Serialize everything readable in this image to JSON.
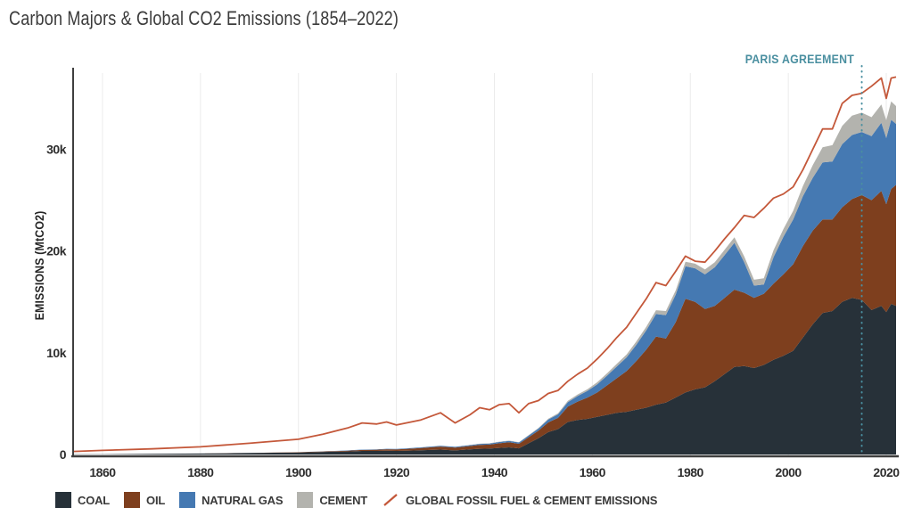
{
  "title": "Carbon Majors & Global CO2 Emissions (1854–2022)",
  "axes": {
    "y_label": "EMISSIONS (MtCO2)",
    "y_tick_labels": [
      "0",
      "10k",
      "20k",
      "30k"
    ],
    "x_tick_labels": [
      "1860",
      "1880",
      "1900",
      "1920",
      "1940",
      "1960",
      "1980",
      "2000",
      "2020"
    ]
  },
  "annotations": {
    "paris_label": "PARIS AGREEMENT",
    "paris_year": 2015,
    "paris_color": "#4a8fa0"
  },
  "colors": {
    "coal": "#273139",
    "oil": "#7e3f1e",
    "natural_gas": "#4579b2",
    "cement": "#b3b3ae",
    "global_line": "#c4583a",
    "axis": "#3f3f3f",
    "gridline": "#ebebeb",
    "title_text": "#3b3b3b"
  },
  "legend": [
    {
      "label": "COAL",
      "color": "#273139",
      "glyph": "swatch"
    },
    {
      "label": "OIL",
      "color": "#7e3f1e",
      "glyph": "swatch"
    },
    {
      "label": "NATURAL GAS",
      "color": "#4579b2",
      "glyph": "swatch"
    },
    {
      "label": "CEMENT",
      "color": "#b3b3ae",
      "glyph": "swatch"
    },
    {
      "label": "GLOBAL FOSSIL FUEL & CEMENT EMISSIONS",
      "color": "#c4583a",
      "glyph": "line"
    }
  ],
  "chart_data": {
    "type": "area",
    "title": "Carbon Majors & Global CO2 Emissions (1854–2022)",
    "xlabel": "",
    "ylabel": "EMISSIONS (MtCO2)",
    "x_range": [
      1854,
      2022
    ],
    "ylim": [
      0,
      38000
    ],
    "x_ticks": [
      1860,
      1880,
      1900,
      1920,
      1940,
      1960,
      1980,
      2000,
      2020
    ],
    "y_ticks": [
      {
        "value": 0,
        "label": "0"
      },
      {
        "value": 10000,
        "label": "10k"
      },
      {
        "value": 20000,
        "label": "20k"
      },
      {
        "value": 30000,
        "label": "30k"
      }
    ],
    "grid": "vertical-only",
    "legend_position": "bottom",
    "stacked": true,
    "years": [
      1854,
      1860,
      1870,
      1880,
      1890,
      1900,
      1905,
      1910,
      1913,
      1916,
      1918,
      1920,
      1922,
      1925,
      1929,
      1932,
      1935,
      1937,
      1939,
      1941,
      1943,
      1945,
      1947,
      1949,
      1951,
      1953,
      1955,
      1957,
      1959,
      1961,
      1963,
      1965,
      1967,
      1969,
      1971,
      1973,
      1975,
      1977,
      1979,
      1981,
      1983,
      1985,
      1987,
      1989,
      1991,
      1993,
      1995,
      1997,
      1999,
      2001,
      2003,
      2005,
      2007,
      2009,
      2011,
      2013,
      2015,
      2017,
      2019,
      2020,
      2021,
      2022
    ],
    "series": [
      {
        "name": "COAL",
        "color": "#273139",
        "values": [
          20,
          30,
          60,
          100,
          150,
          200,
          250,
          300,
          350,
          350,
          380,
          350,
          380,
          420,
          480,
          400,
          500,
          560,
          580,
          650,
          700,
          600,
          1100,
          1600,
          2200,
          2500,
          3200,
          3400,
          3500,
          3700,
          3900,
          4100,
          4200,
          4400,
          4600,
          4900,
          5100,
          5600,
          6100,
          6400,
          6600,
          7200,
          7900,
          8600,
          8700,
          8500,
          8800,
          9300,
          9700,
          10200,
          11500,
          12800,
          13900,
          14100,
          15000,
          15400,
          15200,
          14200,
          14600,
          14000,
          14800,
          14600
        ]
      },
      {
        "name": "OIL",
        "color": "#7e3f1e",
        "values": [
          0,
          0,
          0,
          0,
          10,
          30,
          50,
          80,
          100,
          120,
          140,
          150,
          170,
          220,
          300,
          280,
          330,
          380,
          390,
          450,
          500,
          450,
          600,
          750,
          950,
          1100,
          1500,
          1800,
          2100,
          2400,
          2900,
          3400,
          4000,
          4800,
          5700,
          6700,
          6300,
          7400,
          9200,
          8600,
          7700,
          7400,
          7500,
          7600,
          7200,
          6900,
          7000,
          7500,
          8000,
          8500,
          9000,
          9200,
          9200,
          9000,
          9300,
          9700,
          10300,
          10800,
          11300,
          10600,
          11300,
          11900
        ]
      },
      {
        "name": "NATURAL GAS",
        "color": "#4579b2",
        "values": [
          0,
          0,
          0,
          0,
          0,
          0,
          10,
          20,
          30,
          35,
          40,
          40,
          50,
          60,
          80,
          75,
          90,
          100,
          110,
          130,
          140,
          130,
          160,
          200,
          280,
          350,
          450,
          550,
          650,
          800,
          950,
          1150,
          1350,
          1600,
          1900,
          2200,
          2300,
          2700,
          3200,
          3300,
          3400,
          3800,
          4200,
          4600,
          3000,
          1200,
          900,
          2600,
          3700,
          4400,
          4900,
          5200,
          5600,
          5700,
          6200,
          6300,
          6200,
          6300,
          6700,
          6500,
          6800,
          6000
        ]
      },
      {
        "name": "CEMENT",
        "color": "#b3b3ae",
        "values": [
          0,
          0,
          0,
          0,
          0,
          0,
          0,
          0,
          0,
          0,
          0,
          0,
          0,
          10,
          10,
          10,
          20,
          20,
          20,
          30,
          30,
          30,
          40,
          50,
          80,
          100,
          130,
          150,
          170,
          200,
          230,
          260,
          280,
          320,
          350,
          380,
          400,
          420,
          440,
          450,
          480,
          500,
          520,
          550,
          560,
          580,
          620,
          680,
          750,
          850,
          1000,
          1250,
          1500,
          1600,
          1800,
          1900,
          1900,
          1850,
          1800,
          1750,
          1800,
          1750
        ]
      }
    ],
    "line_series": {
      "name": "GLOBAL FOSSIL FUEL & CEMENT EMISSIONS",
      "color": "#c4583a",
      "values": [
        300,
        400,
        550,
        750,
        1100,
        1500,
        2000,
        2600,
        3100,
        3000,
        3200,
        2900,
        3100,
        3400,
        4100,
        3100,
        3900,
        4600,
        4400,
        4900,
        5000,
        4100,
        5000,
        5300,
        6000,
        6300,
        7200,
        7900,
        8500,
        9400,
        10400,
        11500,
        12500,
        13900,
        15300,
        16900,
        16600,
        18000,
        19500,
        19000,
        18900,
        20000,
        21200,
        22300,
        23500,
        23300,
        24200,
        25200,
        25600,
        26300,
        28000,
        30000,
        32000,
        32000,
        34500,
        35300,
        35500,
        36200,
        37000,
        35000,
        37000,
        37100
      ]
    },
    "annotation": {
      "label": "PARIS AGREEMENT",
      "year": 2015
    }
  }
}
